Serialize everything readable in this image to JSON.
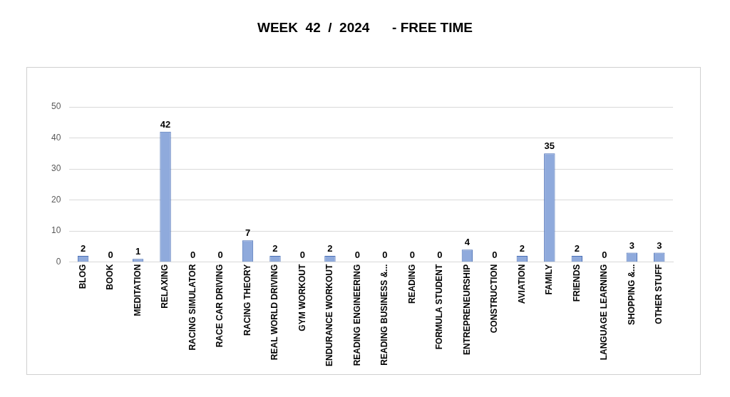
{
  "chart_data": {
    "type": "bar",
    "title": "WEEK  42  /  2024      - FREE TIME",
    "categories": [
      "BLOG",
      "BOOK",
      "MEDITATION",
      "RELAXING",
      "RACING SIMULATOR",
      "RACE CAR DRIVING",
      "RACING THEORY",
      "REAL WORLD DRIVING",
      "GYM WORKOUT",
      "ENDURANCE WORKOUT",
      "READING ENGINEERING",
      "READING BUSINESS &...",
      "READING",
      "FORMULA STUDENT",
      "ENTREPRENEURSHIP",
      "CONSTRUCTION",
      "AVIATION",
      "FAMILY",
      "FRIENDS",
      "LANGUAGE LEARNING",
      "SHOPPING &...",
      "OTHER STUFF"
    ],
    "values": [
      2,
      0,
      1,
      42,
      0,
      0,
      7,
      2,
      0,
      2,
      0,
      0,
      0,
      0,
      4,
      0,
      2,
      35,
      2,
      0,
      3,
      3
    ],
    "color": "#8faadc",
    "ylim": [
      0,
      50
    ],
    "yticks": [
      0,
      10,
      20,
      30,
      40,
      50
    ],
    "grid": "y",
    "data_labels": true,
    "legend": false
  }
}
